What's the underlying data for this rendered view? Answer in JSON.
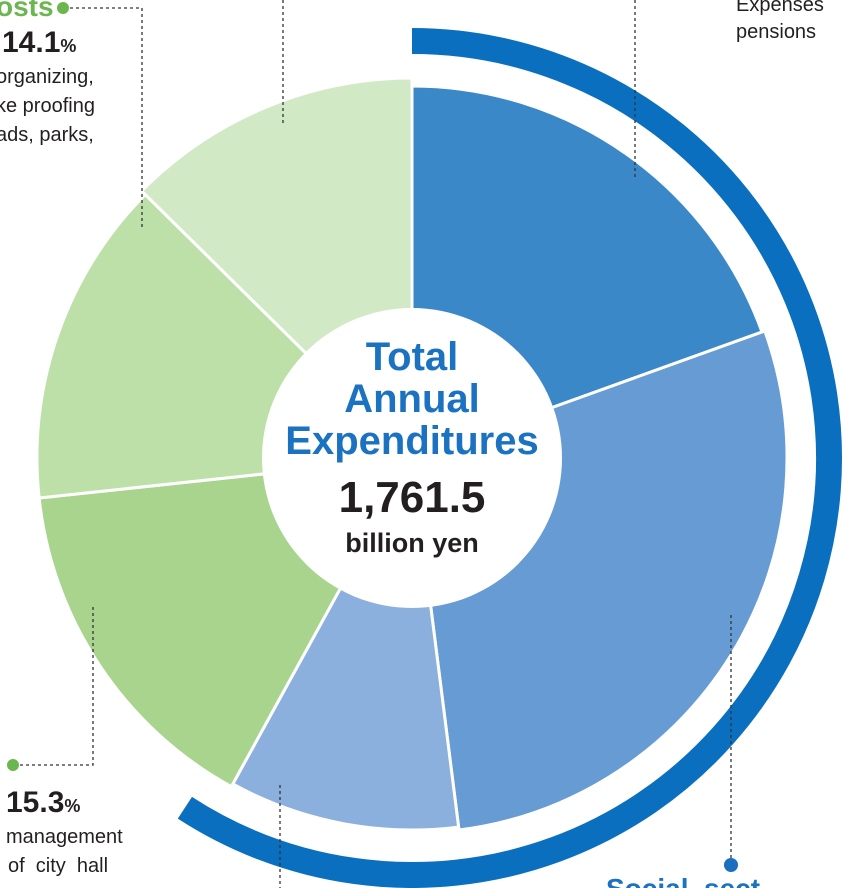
{
  "chart_data": {
    "type": "pie",
    "center": {
      "title_lines": [
        "Total",
        "Annual",
        "Expenditures"
      ],
      "value": "1,761.5",
      "unit": "billion yen"
    },
    "slices": [
      {
        "name": "",
        "value": 19.5,
        "color": "#3b88c9",
        "group": "social"
      },
      {
        "name": "",
        "value": 28.5,
        "color": "#679bd3",
        "group": "social"
      },
      {
        "name": "",
        "value": 10.0,
        "color": "#8cb0dd",
        "group": "other"
      },
      {
        "name": "",
        "value": 15.3,
        "color": "#a8d48e",
        "group": "management"
      },
      {
        "name": "",
        "value": 14.1,
        "color": "#bde0a8",
        "group": "construction"
      },
      {
        "name": "",
        "value": 12.6,
        "color": "#d2e9c6",
        "group": "other"
      }
    ],
    "colors": {
      "social_arc": "#0a6fbe",
      "green_dot": "#6cb64f",
      "blue_dot": "#1a6fc0"
    }
  },
  "labels": {
    "construction": {
      "head_partial": "osts",
      "pct": "14.1",
      "pct_sign": "%",
      "desc": [
        "organizing,",
        "ke proofing",
        "ads, parks,"
      ]
    },
    "management": {
      "pct": "15.3",
      "pct_sign": "%",
      "desc": [
        "management",
        "of  city  hall"
      ]
    },
    "social": {
      "desc": [
        "Expenses",
        "pensions"
      ],
      "head_partial": "Social  sect"
    }
  }
}
